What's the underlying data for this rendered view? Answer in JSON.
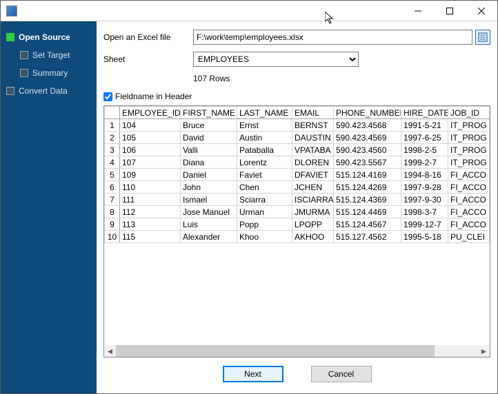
{
  "window": {
    "title": ""
  },
  "sidebar": {
    "items": [
      {
        "label": "Open Source",
        "active": true,
        "selected": true
      },
      {
        "label": "Set Target"
      },
      {
        "label": "Summary"
      },
      {
        "label": "Convert Data"
      }
    ]
  },
  "form": {
    "open_label": "Open an Excel file",
    "file_path": "F:\\work\\temp\\employees.xlsx",
    "sheet_label": "Sheet",
    "sheet_value": "EMPLOYEES",
    "rows_info": "107 Rows",
    "fieldname_label": "Fieldname in Header",
    "fieldname_checked": true
  },
  "table": {
    "columns": [
      "EMPLOYEE_ID",
      "FIRST_NAME",
      "LAST_NAME",
      "EMAIL",
      "PHONE_NUMBER",
      "HIRE_DATE",
      "JOB_ID"
    ],
    "rows": [
      [
        "104",
        "Bruce",
        "Ernst",
        "BERNST",
        "590.423.4568",
        "1991-5-21",
        "IT_PROG"
      ],
      [
        "105",
        "David",
        "Austin",
        "DAUSTIN",
        "590.423.4569",
        "1997-6-25",
        "IT_PROG"
      ],
      [
        "106",
        "Valli",
        "Pataballa",
        "VPATABA",
        "590.423.4560",
        "1998-2-5",
        "IT_PROG"
      ],
      [
        "107",
        "Diana",
        "Lorentz",
        "DLOREN",
        "590.423.5567",
        "1999-2-7",
        "IT_PROG"
      ],
      [
        "109",
        "Daniel",
        "Faviet",
        "DFAVIET",
        "515.124.4169",
        "1994-8-16",
        "FI_ACCO"
      ],
      [
        "110",
        "John",
        "Chen",
        "JCHEN",
        "515.124.4269",
        "1997-9-28",
        "FI_ACCO"
      ],
      [
        "111",
        "Ismael",
        "Sciarra",
        "ISCIARRA",
        "515.124.4369",
        "1997-9-30",
        "FI_ACCO"
      ],
      [
        "112",
        "Jose Manuel",
        "Urman",
        "JMURMA",
        "515.124.4469",
        "1998-3-7",
        "FI_ACCO"
      ],
      [
        "113",
        "Luis",
        "Popp",
        "LPOPP",
        "515.124.4567",
        "1999-12-7",
        "FI_ACCO"
      ],
      [
        "115",
        "Alexander",
        "Khoo",
        "AKHOO",
        "515.127.4562",
        "1995-5-18",
        "PU_CLEI"
      ]
    ]
  },
  "buttons": {
    "next": "Next",
    "cancel": "Cancel"
  },
  "colors": {
    "sidebar_bg": "#0e4a7b",
    "active_step": "#2ecc40",
    "primary_btn_border": "#0078d7"
  }
}
